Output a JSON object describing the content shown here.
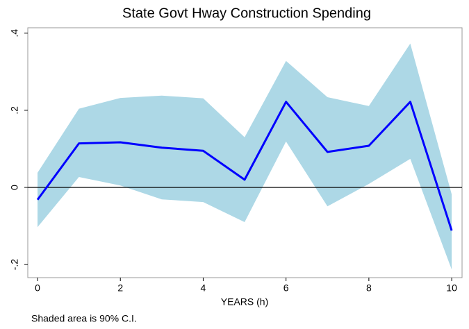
{
  "chart_data": {
    "type": "line",
    "title": "State Govt Hway Construction Spending",
    "xlabel": "YEARS (h)",
    "note": "Shaded area is 90% C.I.",
    "x": [
      0,
      1,
      2,
      3,
      4,
      5,
      6,
      7,
      8,
      9,
      10
    ],
    "values": [
      -0.032,
      0.114,
      0.117,
      0.103,
      0.095,
      0.02,
      0.222,
      0.092,
      0.108,
      0.222,
      -0.112
    ],
    "ci_upper": [
      0.038,
      0.204,
      0.232,
      0.238,
      0.231,
      0.13,
      0.328,
      0.234,
      0.211,
      0.373,
      -0.018
    ],
    "ci_lower": [
      -0.103,
      0.027,
      0.005,
      -0.031,
      -0.038,
      -0.09,
      0.119,
      -0.049,
      0.009,
      0.074,
      -0.213
    ],
    "color": "#0000ff",
    "band_color": "#add8e6",
    "hline": 0,
    "xlim": [
      -0.235,
      10.25
    ],
    "ylim": [
      -0.234,
      0.414
    ],
    "xticks": [
      0,
      2,
      4,
      6,
      8,
      10
    ],
    "yticks": [
      {
        "value": -0.2,
        "label": "-.2"
      },
      0,
      {
        "value": 0.2,
        "label": ".2"
      },
      {
        "value": 0.4,
        "label": ".4"
      }
    ]
  }
}
